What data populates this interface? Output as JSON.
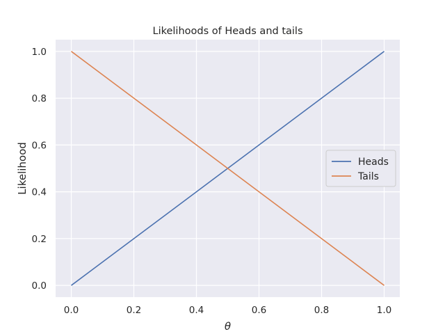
{
  "chart_data": {
    "type": "line",
    "title": "Likelihoods of Heads and tails",
    "xlabel": "θ",
    "ylabel": "Likelihood",
    "xlim": [
      -0.05,
      1.05
    ],
    "ylim": [
      -0.05,
      1.05
    ],
    "xticks": [
      0.0,
      0.2,
      0.4,
      0.6,
      0.8,
      1.0
    ],
    "yticks": [
      0.0,
      0.2,
      0.4,
      0.6,
      0.8,
      1.0
    ],
    "xtick_labels": [
      "0.0",
      "0.2",
      "0.4",
      "0.6",
      "0.8",
      "1.0"
    ],
    "ytick_labels": [
      "0.0",
      "0.2",
      "0.4",
      "0.6",
      "0.8",
      "1.0"
    ],
    "grid": true,
    "legend_position": "center-right",
    "background_color": "#eaeaf2",
    "series": [
      {
        "name": "Heads",
        "color": "#4c72b0",
        "x": [
          0.0,
          1.0
        ],
        "y": [
          0.0,
          1.0
        ]
      },
      {
        "name": "Tails",
        "color": "#dd8452",
        "x": [
          0.0,
          1.0
        ],
        "y": [
          1.0,
          0.0
        ]
      }
    ]
  }
}
